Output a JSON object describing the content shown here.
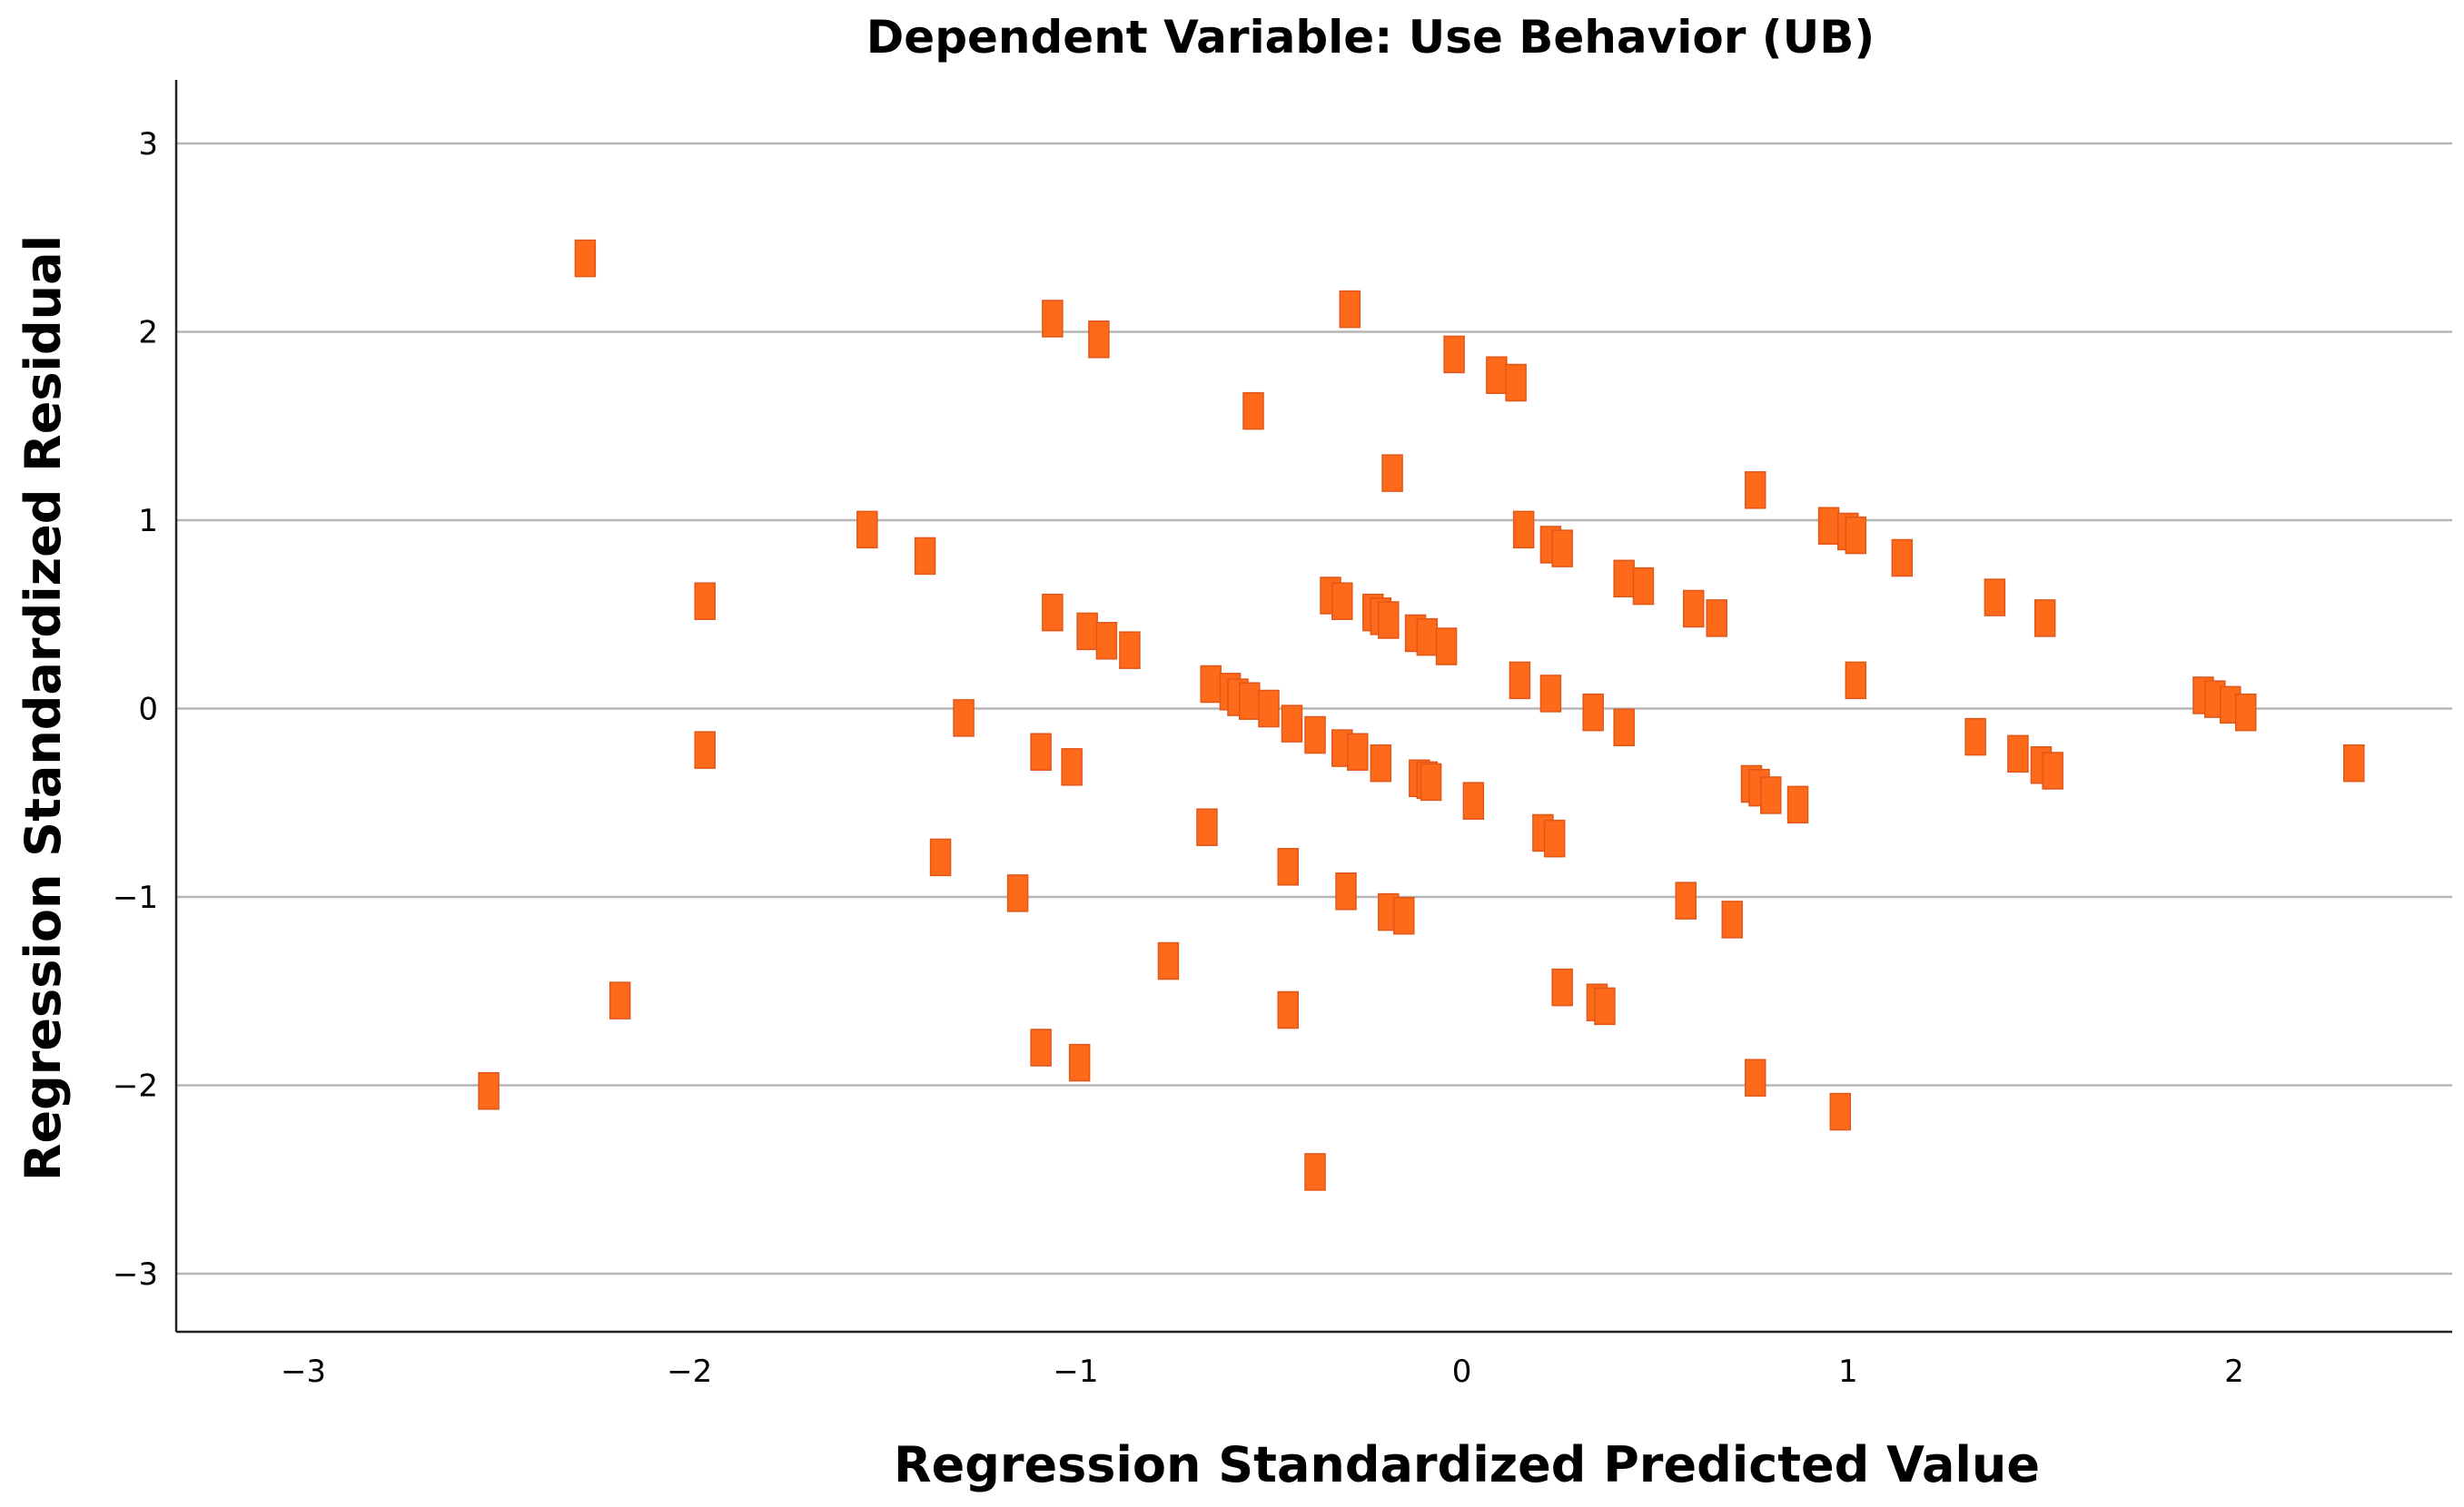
{
  "chart_data": {
    "type": "scatter",
    "title": "Dependent Variable: Use Behavior (UB)",
    "xlabel": "Regression Standardized Predicted Value",
    "ylabel": "Regression Standardized Residual",
    "xlim": [
      -3.35,
      2.55
    ],
    "ylim": [
      -3.3,
      3.3
    ],
    "xticks": [
      -3,
      -2,
      -1,
      0,
      1,
      2
    ],
    "yticks": [
      -3,
      -2,
      -1,
      0,
      1,
      2,
      3
    ],
    "xtick_labels": [
      "−3",
      "−2",
      "−1",
      "0",
      "1",
      "2"
    ],
    "ytick_labels": [
      "−3",
      "−2",
      "−1",
      "0",
      "1",
      "2",
      "3"
    ],
    "grid": "horizontal",
    "marker_color": "#ff6a1a",
    "points": [
      [
        -2.27,
        2.39
      ],
      [
        -2.52,
        -2.03
      ],
      [
        -2.18,
        -1.55
      ],
      [
        -1.96,
        0.57
      ],
      [
        -1.96,
        -0.22
      ],
      [
        -1.54,
        0.95
      ],
      [
        -1.39,
        0.81
      ],
      [
        -1.29,
        -0.05
      ],
      [
        -1.35,
        -0.79
      ],
      [
        -1.06,
        2.07
      ],
      [
        -0.94,
        1.96
      ],
      [
        -0.54,
        1.58
      ],
      [
        -0.29,
        2.12
      ],
      [
        -1.06,
        0.51
      ],
      [
        -0.97,
        0.41
      ],
      [
        -0.92,
        0.36
      ],
      [
        -0.86,
        0.31
      ],
      [
        -1.09,
        -0.23
      ],
      [
        -1.01,
        -0.31
      ],
      [
        -1.15,
        -0.98
      ],
      [
        -1.09,
        -1.8
      ],
      [
        -0.99,
        -1.88
      ],
      [
        -0.76,
        -1.34
      ],
      [
        -0.66,
        -0.63
      ],
      [
        -0.45,
        -0.84
      ],
      [
        -0.65,
        0.13
      ],
      [
        -0.6,
        0.09
      ],
      [
        -0.58,
        0.06
      ],
      [
        -0.55,
        0.04
      ],
      [
        -0.5,
        0.0
      ],
      [
        -0.44,
        -0.08
      ],
      [
        -0.38,
        -0.14
      ],
      [
        -0.31,
        -0.21
      ],
      [
        -0.27,
        -0.23
      ],
      [
        -0.21,
        -0.29
      ],
      [
        -0.11,
        -0.37
      ],
      [
        -0.09,
        -0.38
      ],
      [
        -0.08,
        -0.39
      ],
      [
        0.03,
        -0.49
      ],
      [
        -0.3,
        -0.97
      ],
      [
        -0.19,
        -1.08
      ],
      [
        -0.15,
        -1.1
      ],
      [
        -0.45,
        -1.6
      ],
      [
        -0.38,
        -2.46
      ],
      [
        -0.34,
        0.6
      ],
      [
        -0.31,
        0.57
      ],
      [
        -0.23,
        0.51
      ],
      [
        -0.21,
        0.49
      ],
      [
        -0.19,
        0.47
      ],
      [
        -0.12,
        0.4
      ],
      [
        -0.09,
        0.38
      ],
      [
        -0.04,
        0.33
      ],
      [
        -0.18,
        1.25
      ],
      [
        -0.02,
        1.88
      ],
      [
        0.09,
        1.77
      ],
      [
        0.14,
        1.73
      ],
      [
        0.16,
        0.95
      ],
      [
        0.23,
        0.87
      ],
      [
        0.26,
        0.85
      ],
      [
        0.42,
        0.69
      ],
      [
        0.47,
        0.65
      ],
      [
        0.6,
        0.53
      ],
      [
        0.66,
        0.48
      ],
      [
        0.15,
        0.15
      ],
      [
        0.23,
        0.08
      ],
      [
        0.34,
        -0.02
      ],
      [
        0.42,
        -0.1
      ],
      [
        0.21,
        -0.66
      ],
      [
        0.24,
        -0.69
      ],
      [
        0.26,
        -1.48
      ],
      [
        0.35,
        -1.56
      ],
      [
        0.37,
        -1.58
      ],
      [
        0.58,
        -1.02
      ],
      [
        0.7,
        -1.12
      ],
      [
        0.75,
        -0.4
      ],
      [
        0.77,
        -0.42
      ],
      [
        0.8,
        -0.46
      ],
      [
        0.87,
        -0.51
      ],
      [
        0.76,
        -1.96
      ],
      [
        0.76,
        1.16
      ],
      [
        0.95,
        0.97
      ],
      [
        1.0,
        0.94
      ],
      [
        1.02,
        0.92
      ],
      [
        1.14,
        0.8
      ],
      [
        1.38,
        0.59
      ],
      [
        1.51,
        0.48
      ],
      [
        1.02,
        0.15
      ],
      [
        1.33,
        -0.15
      ],
      [
        1.44,
        -0.24
      ],
      [
        1.5,
        -0.3
      ],
      [
        1.53,
        -0.33
      ],
      [
        0.98,
        -2.14
      ],
      [
        1.92,
        0.07
      ],
      [
        1.95,
        0.05
      ],
      [
        1.99,
        0.02
      ],
      [
        2.03,
        -0.02
      ],
      [
        2.31,
        -0.29
      ]
    ]
  }
}
